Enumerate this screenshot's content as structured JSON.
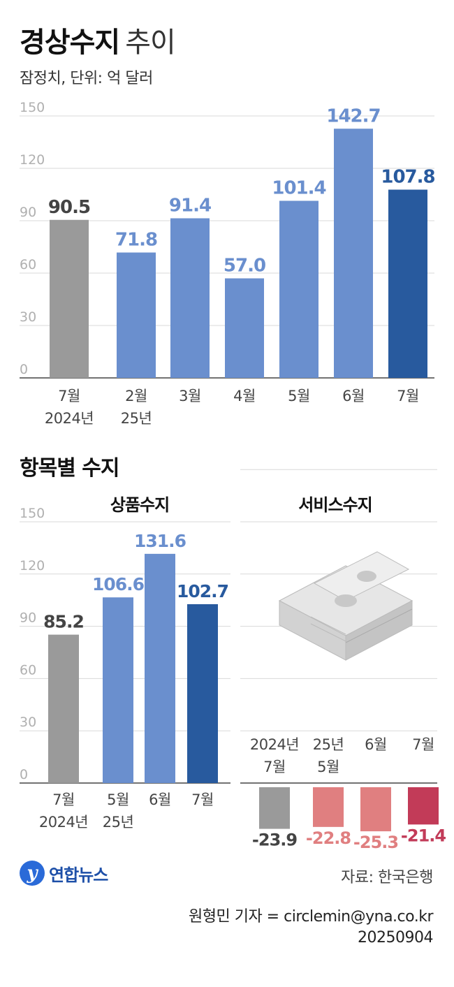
{
  "header": {
    "title_bold": "경상수지",
    "title_light": "추이",
    "subtitle": "잠정치, 단위: 억 달러"
  },
  "colors": {
    "gray": "#9a9a9a",
    "blue": "#6a8fce",
    "navy": "#285a9e",
    "pink": "#e07f80",
    "red": "#c23b58",
    "label_gray": "#444444",
    "label_blue": "#6a8fce",
    "label_navy": "#285a9e",
    "label_pink": "#e07f80",
    "label_red": "#c23b58"
  },
  "section": {
    "title": "항목별 수지"
  },
  "panels": {
    "goods_title": "상품수지",
    "services_title": "서비스수지"
  },
  "illustration": {
    "icon": "money-stack-icon"
  },
  "chart_data": [
    {
      "type": "bar",
      "title": "경상수지 추이",
      "categories": [
        "7월|2024년",
        "2월|25년",
        "3월",
        "4월",
        "5월",
        "6월",
        "7월"
      ],
      "values": [
        90.5,
        71.8,
        91.4,
        57.0,
        101.4,
        142.7,
        107.8
      ],
      "value_labels": [
        "90.5",
        "71.8",
        "91.4",
        "57.0",
        "101.4",
        "142.7",
        "107.8"
      ],
      "bar_colors": [
        "gray",
        "blue",
        "blue",
        "blue",
        "blue",
        "blue",
        "navy"
      ],
      "ylim": [
        0,
        150
      ],
      "yticks": [
        "0",
        "30",
        "60",
        "90",
        "120",
        "150"
      ],
      "grid": true
    },
    {
      "type": "bar",
      "title": "상품수지",
      "categories": [
        "7월|2024년",
        "5월|25년",
        "6월",
        "7월"
      ],
      "values": [
        85.2,
        106.6,
        131.6,
        102.7
      ],
      "value_labels": [
        "85.2",
        "106.6",
        "131.6",
        "102.7"
      ],
      "bar_colors": [
        "gray",
        "blue",
        "blue",
        "navy"
      ],
      "ylim": [
        0,
        150
      ],
      "yticks": [
        "0",
        "30",
        "60",
        "90",
        "120",
        "150"
      ],
      "grid": true
    },
    {
      "type": "bar",
      "title": "서비스수지",
      "categories": [
        "2024년|7월",
        "25년|5월",
        "6월",
        "7월"
      ],
      "values": [
        -23.9,
        -22.8,
        -25.3,
        -21.4
      ],
      "value_labels": [
        "-23.9",
        "-22.8",
        "-25.3",
        "-21.4"
      ],
      "bar_colors": [
        "gray",
        "pink",
        "pink",
        "red"
      ],
      "ylim": [
        -30,
        150
      ],
      "grid": true
    }
  ],
  "footer": {
    "logo_mark": "y",
    "logo_text": "연합뉴스",
    "source": "자료: 한국은행",
    "credit_line1": "원형민 기자 = circlemin@yna.co.kr",
    "credit_line2": "20250904"
  }
}
